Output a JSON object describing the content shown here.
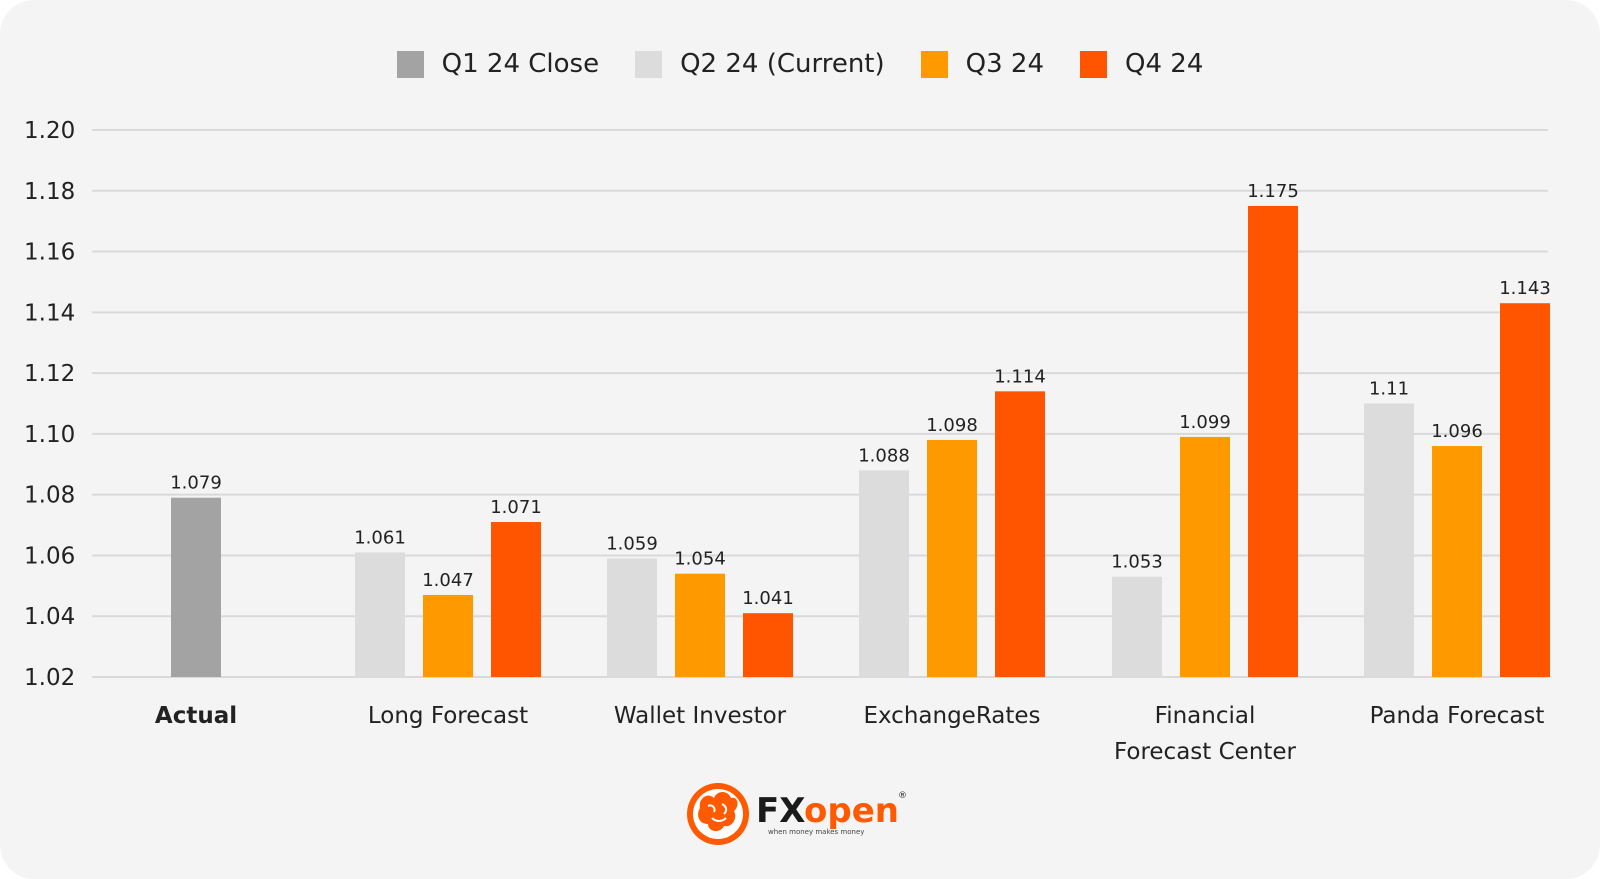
{
  "colors": {
    "background": "#f4f4f5",
    "grid": "#d9d9db",
    "q1": "#a3a3a3",
    "q2": "#dcdcdd",
    "q3": "#ff9900",
    "q4": "#ff5500",
    "brand": "#ff5a00"
  },
  "legend": {
    "items": [
      {
        "label": "Q1 24 Close",
        "color": "#a3a3a3"
      },
      {
        "label": "Q2 24 (Current)",
        "color": "#dcdcdd"
      },
      {
        "label": "Q3 24",
        "color": "#ff9900"
      },
      {
        "label": "Q4 24",
        "color": "#ff5500"
      }
    ]
  },
  "chart_data": {
    "type": "bar",
    "title": "",
    "xlabel": "",
    "ylabel": "",
    "ylim": [
      1.02,
      1.2
    ],
    "yticks": [
      "1.02",
      "1.04",
      "1.06",
      "1.08",
      "1.10",
      "1.12",
      "1.14",
      "1.16",
      "1.18",
      "1.20"
    ],
    "grid": true,
    "legend_position": "top-center",
    "categories": [
      {
        "label": [
          "Actual"
        ],
        "bold": true
      },
      {
        "label": [
          "Long Forecast"
        ],
        "bold": false
      },
      {
        "label": [
          "Wallet Investor"
        ],
        "bold": false
      },
      {
        "label": [
          "ExchangeRates"
        ],
        "bold": false
      },
      {
        "label": [
          "Financial",
          "Forecast Center"
        ],
        "bold": false
      },
      {
        "label": [
          "Panda Forecast"
        ],
        "bold": false
      }
    ],
    "series": [
      {
        "name": "Q1 24 Close",
        "color": "#a3a3a3",
        "values": [
          1.079,
          null,
          null,
          null,
          null,
          null
        ],
        "labels": [
          "1.079",
          null,
          null,
          null,
          null,
          null
        ]
      },
      {
        "name": "Q2 24 (Current)",
        "color": "#dcdcdd",
        "values": [
          null,
          1.061,
          1.059,
          1.088,
          1.053,
          1.11
        ],
        "labels": [
          null,
          "1.061",
          "1.059",
          "1.088",
          "1.053",
          "1.11"
        ]
      },
      {
        "name": "Q3 24",
        "color": "#ff9900",
        "values": [
          null,
          1.047,
          1.054,
          1.098,
          1.099,
          1.096
        ],
        "labels": [
          null,
          "1.047",
          "1.054",
          "1.098",
          "1.099",
          "1.096"
        ]
      },
      {
        "name": "Q4 24",
        "color": "#ff5500",
        "values": [
          null,
          1.071,
          1.041,
          1.114,
          1.175,
          1.143
        ],
        "labels": [
          null,
          "1.071",
          "1.041",
          "1.114",
          "1.175",
          "1.143"
        ]
      }
    ]
  },
  "brand": {
    "logo_text_fx": "FX",
    "logo_text_open": "open",
    "registered_mark": "®",
    "tagline": "when money makes money",
    "emblem_icon": "bull-emblem-icon"
  }
}
